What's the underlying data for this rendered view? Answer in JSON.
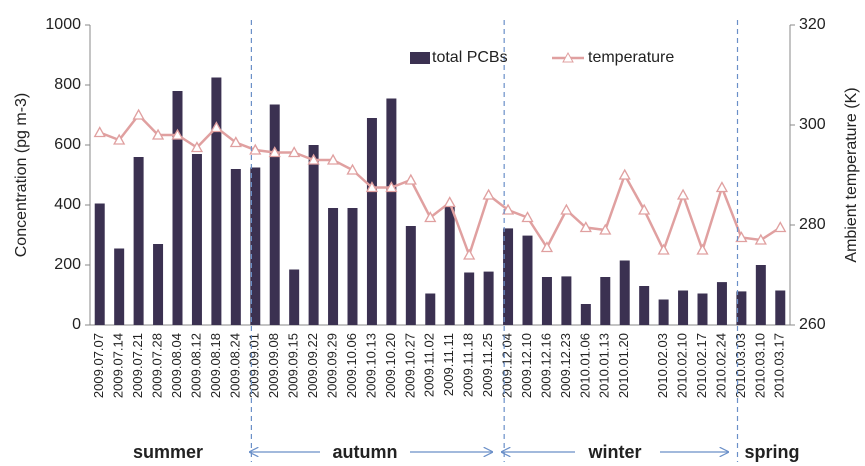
{
  "chart_data": {
    "type": "bar_line",
    "categories": [
      "2009.07.07",
      "2009.07.14",
      "2009.07.21",
      "2009.07.28",
      "2009.08.04",
      "2009.08.12",
      "2009.08.18",
      "2009.08.24",
      "2009.09.01",
      "2009.09.08",
      "2009.09.15",
      "2009.09.22",
      "2009.09.29",
      "2009.10.06",
      "2009.10.13",
      "2009.10.20",
      "2009.10.27",
      "2009.11.02",
      "2009.11.11",
      "2009.11.18",
      "2009.11.25",
      "2009.12.04",
      "2009.12.10",
      "2009.12.16",
      "2009.12.23",
      "2010.01.06",
      "2010.01.13",
      "2010.01.20",
      null,
      "2010.02.03",
      "2010.02.10",
      "2010.02.17",
      "2010.02.24",
      "2010.03.03",
      "2010.03.10",
      "2010.03.17"
    ],
    "series": [
      {
        "name": "total PCBs",
        "color": "#3b3151",
        "axis": "y",
        "kind": "bar",
        "values": [
          405,
          255,
          560,
          270,
          780,
          570,
          825,
          520,
          525,
          735,
          185,
          600,
          390,
          390,
          690,
          755,
          330,
          105,
          395,
          175,
          178,
          322,
          298,
          160,
          162,
          70,
          160,
          215,
          130,
          85,
          115,
          105,
          143,
          112,
          200,
          115
        ]
      },
      {
        "name": "temperature",
        "color": "#e0a0a0",
        "axis": "y2",
        "kind": "line",
        "values": [
          298.5,
          297,
          302,
          298,
          298,
          295.5,
          299.5,
          296.5,
          295,
          294.5,
          294.5,
          293,
          293,
          291,
          287.5,
          287.5,
          289,
          281.5,
          284.5,
          274,
          286,
          283,
          281.5,
          275.5,
          283,
          279.5,
          279,
          290,
          283,
          275,
          286,
          275,
          287.5,
          277.5,
          277,
          279.5
        ]
      }
    ],
    "ylabel": "Concentration (pg m-3)",
    "y2label": "Ambient temperature (K)",
    "ylim": [
      0,
      1000
    ],
    "yticks": [
      0,
      200,
      400,
      600,
      800,
      1000
    ],
    "y2lim": [
      260,
      320
    ],
    "y2ticks": [
      260,
      280,
      300,
      320
    ],
    "legend": "top-right",
    "seasons": [
      "summer",
      "autumn",
      "winter",
      "spring"
    ]
  }
}
